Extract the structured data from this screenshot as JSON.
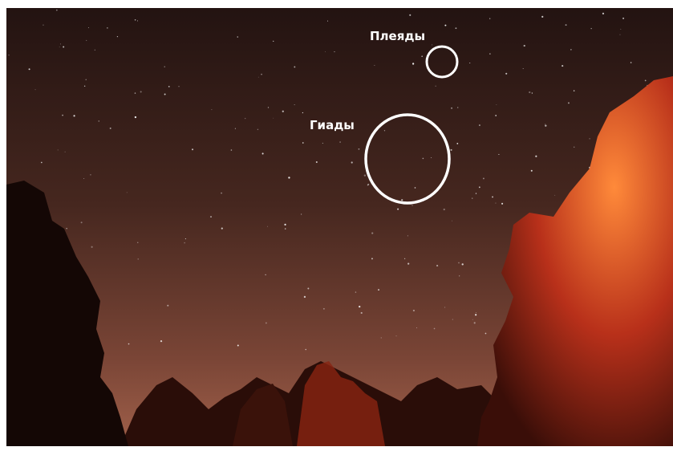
{
  "annotations": [
    {
      "label": "Плеяды"
    },
    {
      "label": "Гиады"
    }
  ]
}
